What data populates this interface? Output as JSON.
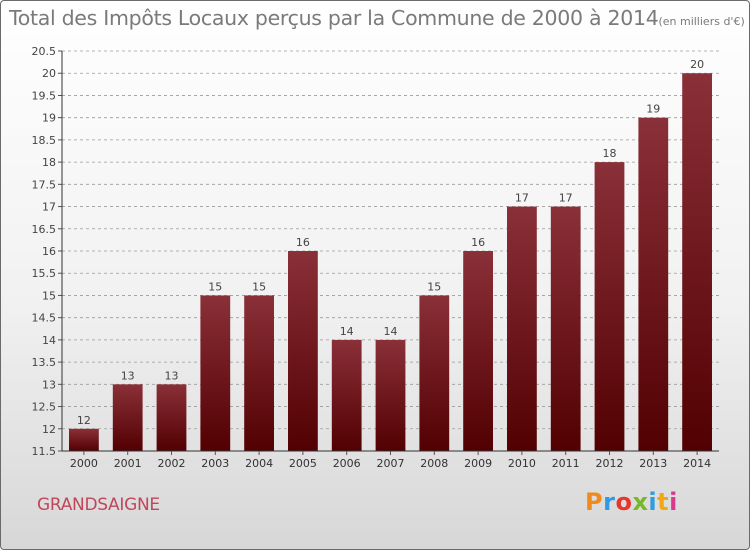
{
  "header": {
    "title": "Total des Impôts Locaux perçus par la Commune de 2000 à 2014",
    "unit": "(en milliers d'€)"
  },
  "footer": {
    "commune": "GRANDSAIGNE",
    "brand": "Proxiti",
    "brand_colors": [
      "#f08a1c",
      "#2f9be0",
      "#e8362a",
      "#76b82a",
      "#2f9be0",
      "#f3a712",
      "#d93a8c"
    ]
  },
  "chart_data": {
    "type": "bar",
    "title": "Total des Impôts Locaux perçus par la Commune de 2000 à 2014",
    "xlabel": "",
    "ylabel": "",
    "categories": [
      "2000",
      "2001",
      "2002",
      "2003",
      "2004",
      "2005",
      "2006",
      "2007",
      "2008",
      "2009",
      "2010",
      "2011",
      "2012",
      "2013",
      "2014"
    ],
    "values": [
      12,
      13,
      13,
      15,
      15,
      16,
      14,
      14,
      15,
      16,
      17,
      17,
      18,
      19,
      20
    ],
    "data_labels": [
      "12",
      "13",
      "13",
      "15",
      "15",
      "16",
      "14",
      "14",
      "15",
      "16",
      "17",
      "17",
      "18",
      "19",
      "20"
    ],
    "ylim": [
      11.5,
      20.5
    ],
    "yticks": [
      11.5,
      12,
      12.5,
      13,
      13.5,
      14,
      14.5,
      15,
      15.5,
      16,
      16.5,
      17,
      17.5,
      18,
      18.5,
      19,
      19.5,
      20,
      20.5
    ],
    "ytick_labels": [
      "11.5",
      "12",
      "12.5",
      "13",
      "13.5",
      "14",
      "14.5",
      "15",
      "15.5",
      "16",
      "16.5",
      "17",
      "17.5",
      "18",
      "18.5",
      "19",
      "19.5",
      "20",
      "20.5"
    ],
    "grid": "horizontal-dashed",
    "bar_color_top": "#8a3038",
    "bar_color_bottom": "#520002"
  }
}
